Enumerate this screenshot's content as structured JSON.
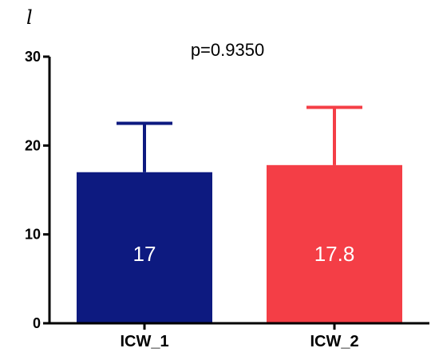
{
  "panel_label": "l",
  "chart_data": {
    "type": "bar",
    "annotation": "p=0.9350",
    "categories": [
      "ICW_1",
      "ICW_2"
    ],
    "values": [
      17,
      17.8
    ],
    "value_labels": [
      "17",
      "17.8"
    ],
    "error_upper": [
      22.5,
      24.3
    ],
    "colors": [
      "#0d1a80",
      "#f43e46"
    ],
    "ylim": [
      0,
      30
    ],
    "yticks": [
      "0",
      "10",
      "20",
      "30"
    ],
    "xlabel": "",
    "ylabel": "",
    "grid": false
  }
}
